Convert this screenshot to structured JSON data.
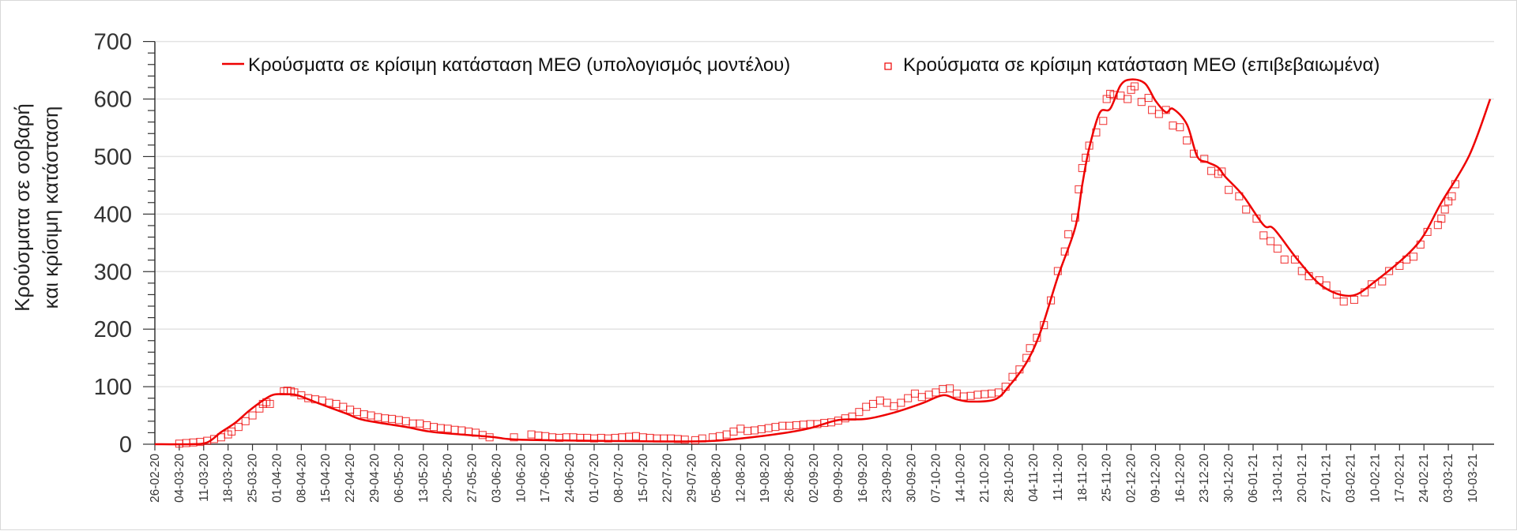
{
  "chart_data": {
    "type": "line",
    "title": "",
    "ylabel_lines": [
      "Κρούσματα σε σοβαρή",
      "και κρίσιμη κατάσταση"
    ],
    "xlabel": "",
    "x_units": "days since 26-02-20",
    "ylim": [
      0,
      700
    ],
    "yticks": [
      0,
      100,
      200,
      300,
      400,
      500,
      600,
      700
    ],
    "y_minor_step": 20,
    "xlim_days": [
      0,
      384
    ],
    "x_tick_step_days": 7,
    "x_tick_labels": [
      "26-02-20",
      "04-03-20",
      "11-03-20",
      "18-03-20",
      "25-03-20",
      "01-04-20",
      "08-04-20",
      "15-04-20",
      "22-04-20",
      "29-04-20",
      "06-05-20",
      "13-05-20",
      "20-05-20",
      "27-05-20",
      "03-06-20",
      "10-06-20",
      "17-06-20",
      "24-06-20",
      "01-07-20",
      "08-07-20",
      "15-07-20",
      "22-07-20",
      "29-07-20",
      "05-08-20",
      "12-08-20",
      "19-08-20",
      "26-08-20",
      "02-09-20",
      "09-09-20",
      "16-09-20",
      "23-09-20",
      "30-09-20",
      "07-10-20",
      "14-10-20",
      "21-10-20",
      "28-10-20",
      "04-11-20",
      "11-11-20",
      "18-11-20",
      "25-11-20",
      "02-12-20",
      "09-12-20",
      "16-12-20",
      "23-12-20",
      "30-12-20",
      "06-01-21",
      "13-01-21",
      "20-01-21",
      "27-01-21",
      "03-02-21",
      "10-02-21",
      "17-02-21",
      "24-02-21",
      "03-03-21",
      "10-03-21"
    ],
    "grid": "horizontal",
    "legend_placement": "top",
    "colors": {
      "series": "#ee0000",
      "grid": "#e2e2e2",
      "axis": "#333333"
    },
    "series": [
      {
        "name": "Κρούσματα σε κρίσιμη κατάσταση ΜΕΘ (υπολογισμός μοντέλου)",
        "style": "line",
        "points": [
          [
            0,
            0
          ],
          [
            10,
            0
          ],
          [
            15,
            3
          ],
          [
            19,
            21
          ],
          [
            23,
            37
          ],
          [
            27,
            58
          ],
          [
            31,
            76
          ],
          [
            34,
            86
          ],
          [
            38,
            87
          ],
          [
            41,
            85
          ],
          [
            47,
            71
          ],
          [
            55,
            53
          ],
          [
            60,
            42
          ],
          [
            72,
            30
          ],
          [
            80,
            21
          ],
          [
            96,
            13
          ],
          [
            104,
            8
          ],
          [
            125,
            6
          ],
          [
            156,
            5
          ],
          [
            168,
            10
          ],
          [
            180,
            19
          ],
          [
            188,
            28
          ],
          [
            196,
            42
          ],
          [
            204,
            44
          ],
          [
            212,
            55
          ],
          [
            220,
            71
          ],
          [
            226,
            85
          ],
          [
            230,
            78
          ],
          [
            234,
            74
          ],
          [
            241,
            78
          ],
          [
            245,
            101
          ],
          [
            250,
            142
          ],
          [
            254,
            195
          ],
          [
            259,
            291
          ],
          [
            264,
            377
          ],
          [
            266,
            451
          ],
          [
            268,
            515
          ],
          [
            271,
            576
          ],
          [
            274,
            583
          ],
          [
            277,
            624
          ],
          [
            280,
            634
          ],
          [
            284,
            627
          ],
          [
            287,
            597
          ],
          [
            290,
            577
          ],
          [
            292,
            583
          ],
          [
            296,
            556
          ],
          [
            299,
            500
          ],
          [
            302,
            490
          ],
          [
            305,
            481
          ],
          [
            307,
            465
          ],
          [
            312,
            433
          ],
          [
            318,
            381
          ],
          [
            321,
            374
          ],
          [
            328,
            319
          ],
          [
            335,
            274
          ],
          [
            343,
            258
          ],
          [
            350,
            283
          ],
          [
            362,
            347
          ],
          [
            369,
            420
          ],
          [
            377,
            502
          ],
          [
            383,
            600
          ]
        ]
      },
      {
        "name": "Κρούσματα σε κρίσιμη κατάσταση ΜΕΘ (επιβεβαιωμένα)",
        "style": "square-markers",
        "points": [
          [
            7,
            1
          ],
          [
            9,
            2
          ],
          [
            11,
            3
          ],
          [
            13,
            4
          ],
          [
            15,
            6
          ],
          [
            17,
            9
          ],
          [
            19,
            12
          ],
          [
            21,
            17
          ],
          [
            22,
            22
          ],
          [
            24,
            30
          ],
          [
            26,
            40
          ],
          [
            28,
            50
          ],
          [
            30,
            62
          ],
          [
            31,
            70
          ],
          [
            32,
            73
          ],
          [
            33,
            70
          ],
          [
            37,
            92
          ],
          [
            38,
            93
          ],
          [
            39,
            92
          ],
          [
            40,
            90
          ],
          [
            42,
            85
          ],
          [
            44,
            80
          ],
          [
            46,
            78
          ],
          [
            48,
            76
          ],
          [
            50,
            72
          ],
          [
            52,
            70
          ],
          [
            54,
            65
          ],
          [
            56,
            60
          ],
          [
            58,
            56
          ],
          [
            60,
            52
          ],
          [
            62,
            50
          ],
          [
            64,
            47
          ],
          [
            66,
            45
          ],
          [
            68,
            44
          ],
          [
            70,
            42
          ],
          [
            72,
            40
          ],
          [
            74,
            36
          ],
          [
            76,
            36
          ],
          [
            78,
            33
          ],
          [
            80,
            30
          ],
          [
            82,
            28
          ],
          [
            84,
            27
          ],
          [
            86,
            25
          ],
          [
            88,
            24
          ],
          [
            90,
            22
          ],
          [
            92,
            20
          ],
          [
            94,
            16
          ],
          [
            96,
            12
          ],
          [
            103,
            12
          ],
          [
            108,
            17
          ],
          [
            110,
            15
          ],
          [
            112,
            14
          ],
          [
            114,
            12
          ],
          [
            116,
            11
          ],
          [
            118,
            12
          ],
          [
            120,
            12
          ],
          [
            122,
            11
          ],
          [
            124,
            11
          ],
          [
            126,
            10
          ],
          [
            128,
            11
          ],
          [
            130,
            10
          ],
          [
            132,
            11
          ],
          [
            134,
            12
          ],
          [
            136,
            13
          ],
          [
            138,
            14
          ],
          [
            140,
            12
          ],
          [
            142,
            11
          ],
          [
            144,
            10
          ],
          [
            146,
            10
          ],
          [
            148,
            10
          ],
          [
            150,
            9
          ],
          [
            152,
            8
          ],
          [
            155,
            7
          ],
          [
            157,
            10
          ],
          [
            160,
            12
          ],
          [
            162,
            14
          ],
          [
            164,
            17
          ],
          [
            166,
            22
          ],
          [
            168,
            27
          ],
          [
            170,
            23
          ],
          [
            172,
            24
          ],
          [
            174,
            26
          ],
          [
            176,
            28
          ],
          [
            178,
            30
          ],
          [
            180,
            32
          ],
          [
            182,
            32
          ],
          [
            184,
            33
          ],
          [
            186,
            34
          ],
          [
            188,
            35
          ],
          [
            190,
            35
          ],
          [
            192,
            37
          ],
          [
            194,
            38
          ],
          [
            196,
            41
          ],
          [
            198,
            45
          ],
          [
            200,
            48
          ],
          [
            202,
            56
          ],
          [
            204,
            65
          ],
          [
            206,
            70
          ],
          [
            208,
            76
          ],
          [
            210,
            72
          ],
          [
            212,
            66
          ],
          [
            214,
            72
          ],
          [
            216,
            80
          ],
          [
            218,
            88
          ],
          [
            220,
            82
          ],
          [
            222,
            86
          ],
          [
            224,
            90
          ],
          [
            226,
            96
          ],
          [
            228,
            97
          ],
          [
            230,
            88
          ],
          [
            232,
            83
          ],
          [
            234,
            84
          ],
          [
            236,
            86
          ],
          [
            238,
            87
          ],
          [
            240,
            88
          ],
          [
            242,
            90
          ],
          [
            244,
            100
          ],
          [
            246,
            117
          ],
          [
            248,
            130
          ],
          [
            250,
            150
          ],
          [
            251,
            167
          ],
          [
            253,
            185
          ],
          [
            255,
            207
          ],
          [
            257,
            250
          ],
          [
            259,
            301
          ],
          [
            261,
            335
          ],
          [
            262,
            365
          ],
          [
            264,
            394
          ],
          [
            265,
            443
          ],
          [
            266,
            480
          ],
          [
            267,
            498
          ],
          [
            268,
            519
          ],
          [
            270,
            542
          ],
          [
            272,
            562
          ],
          [
            273,
            600
          ],
          [
            274,
            609
          ],
          [
            275,
            607
          ],
          [
            277,
            606
          ],
          [
            279,
            600
          ],
          [
            280,
            616
          ],
          [
            281,
            622
          ],
          [
            283,
            595
          ],
          [
            285,
            602
          ],
          [
            286,
            581
          ],
          [
            288,
            574
          ],
          [
            290,
            581
          ],
          [
            292,
            554
          ],
          [
            294,
            551
          ],
          [
            296,
            528
          ],
          [
            298,
            505
          ],
          [
            301,
            496
          ],
          [
            303,
            475
          ],
          [
            305,
            470
          ],
          [
            306,
            474
          ],
          [
            308,
            442
          ],
          [
            311,
            431
          ],
          [
            313,
            408
          ],
          [
            316,
            392
          ],
          [
            318,
            363
          ],
          [
            320,
            353
          ],
          [
            322,
            340
          ],
          [
            324,
            321
          ],
          [
            327,
            321
          ],
          [
            329,
            301
          ],
          [
            331,
            292
          ],
          [
            334,
            285
          ],
          [
            336,
            276
          ],
          [
            339,
            260
          ],
          [
            341,
            248
          ],
          [
            344,
            251
          ],
          [
            347,
            264
          ],
          [
            349,
            278
          ],
          [
            352,
            283
          ],
          [
            354,
            301
          ],
          [
            357,
            310
          ],
          [
            359,
            321
          ],
          [
            361,
            326
          ],
          [
            363,
            347
          ],
          [
            365,
            369
          ],
          [
            368,
            381
          ],
          [
            369,
            392
          ],
          [
            370,
            408
          ],
          [
            371,
            422
          ],
          [
            372,
            431
          ],
          [
            373,
            452
          ]
        ]
      }
    ]
  }
}
